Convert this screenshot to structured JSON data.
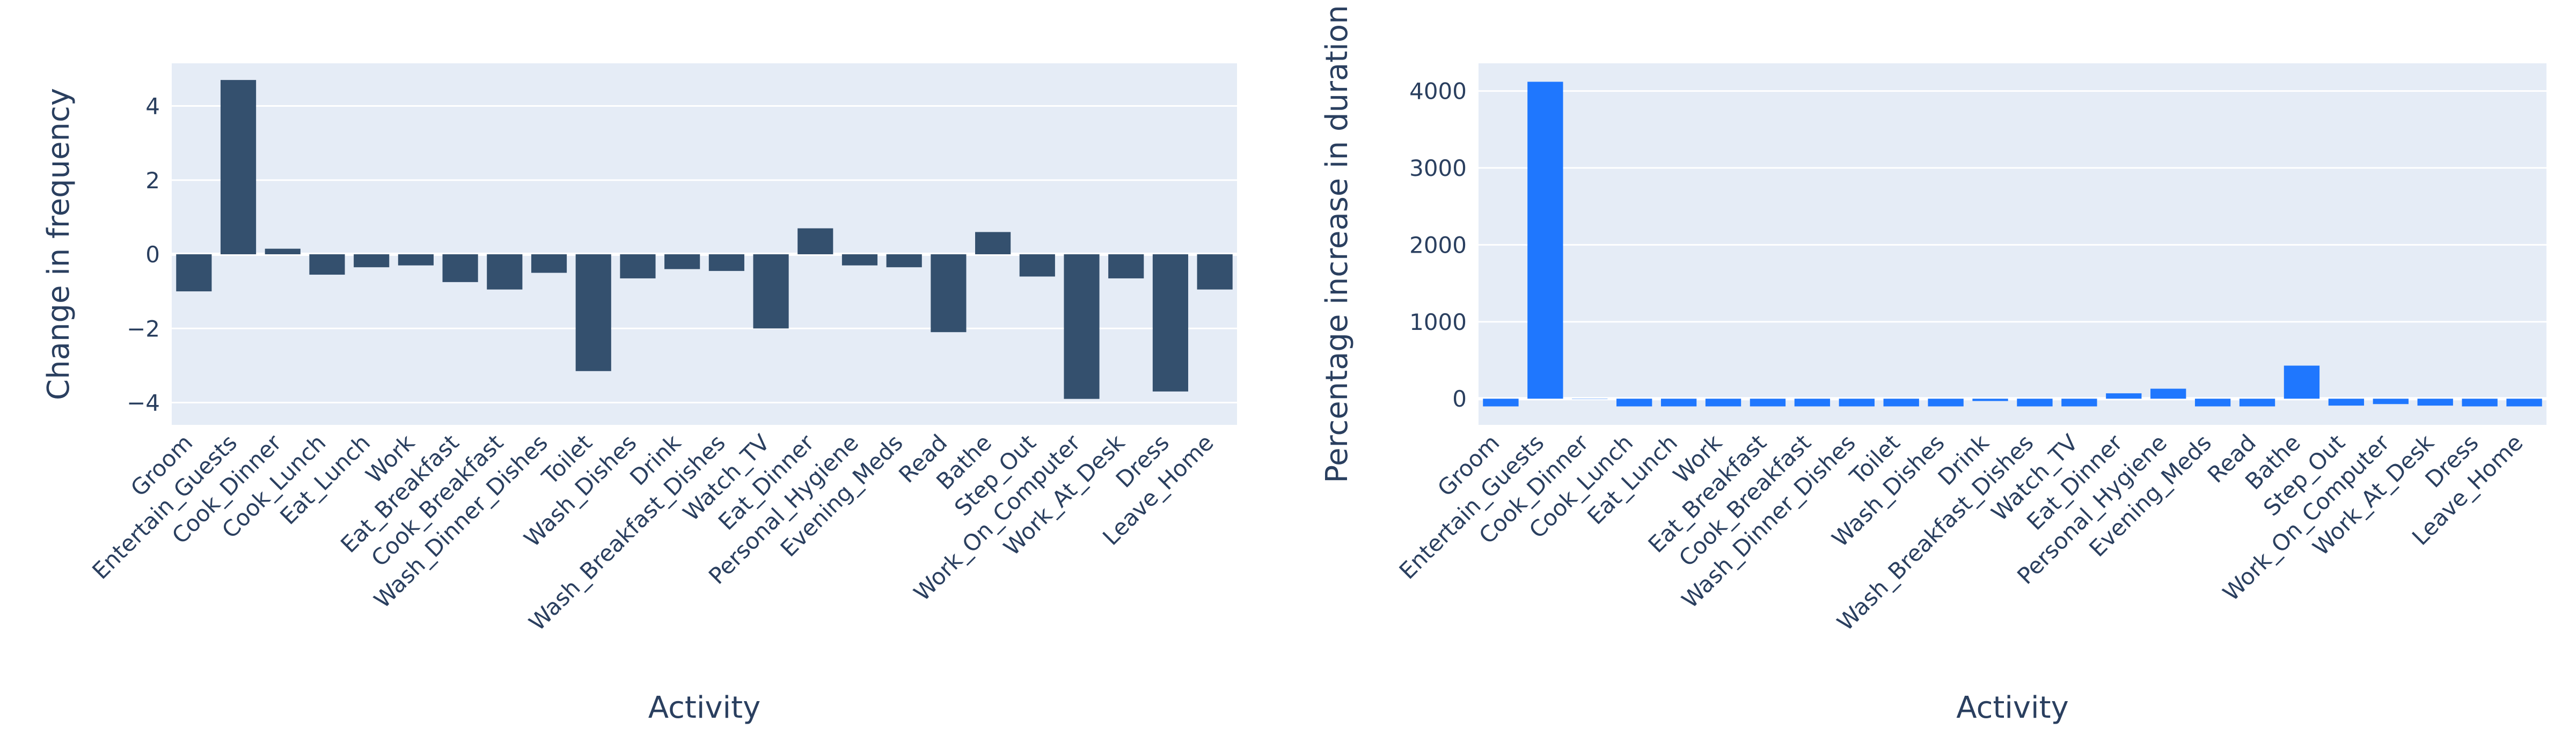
{
  "chart_data": [
    {
      "type": "bar",
      "xlabel": "Activity",
      "ylabel": "Change in frequency",
      "categories": [
        "Groom",
        "Entertain_Guests",
        "Cook_Dinner",
        "Cook_Lunch",
        "Eat_Lunch",
        "Work",
        "Eat_Breakfast",
        "Cook_Breakfast",
        "Wash_Dinner_Dishes",
        "Toilet",
        "Wash_Dishes",
        "Drink",
        "Wash_Breakfast_Dishes",
        "Watch_TV",
        "Eat_Dinner",
        "Personal_Hygiene",
        "Evening_Meds",
        "Read",
        "Bathe",
        "Step_Out",
        "Work_On_Computer",
        "Work_At_Desk",
        "Dress",
        "Leave_Home"
      ],
      "values": [
        -1.0,
        4.7,
        0.15,
        -0.55,
        -0.35,
        -0.3,
        -0.75,
        -0.95,
        -0.5,
        -3.15,
        -0.65,
        -0.4,
        -0.45,
        -2.0,
        0.7,
        -0.3,
        -0.35,
        -2.1,
        0.6,
        -0.6,
        -3.9,
        -0.65,
        -3.7,
        -0.95
      ],
      "ylim": [
        -4.6,
        5.15
      ],
      "yticks": [
        -4,
        -2,
        0,
        2,
        4
      ],
      "ytick_labels": [
        "−4",
        "−2",
        "0",
        "2",
        "4"
      ],
      "bar_color": "#34506e",
      "grid": true
    },
    {
      "type": "bar",
      "xlabel": "Activity",
      "ylabel": "Percentage increase in duration",
      "categories": [
        "Groom",
        "Entertain_Guests",
        "Cook_Dinner",
        "Cook_Lunch",
        "Eat_Lunch",
        "Work",
        "Eat_Breakfast",
        "Cook_Breakfast",
        "Wash_Dinner_Dishes",
        "Toilet",
        "Wash_Dishes",
        "Drink",
        "Wash_Breakfast_Dishes",
        "Watch_TV",
        "Eat_Dinner",
        "Personal_Hygiene",
        "Evening_Meds",
        "Read",
        "Bathe",
        "Step_Out",
        "Work_On_Computer",
        "Work_At_Desk",
        "Dress",
        "Leave_Home"
      ],
      "values": [
        -100,
        4120,
        0,
        -100,
        -100,
        -100,
        -100,
        -100,
        -100,
        -100,
        -100,
        -30,
        -100,
        -100,
        70,
        130,
        -100,
        -100,
        430,
        -90,
        -70,
        -90,
        -100,
        -100
      ],
      "ylim": [
        -340,
        4360
      ],
      "yticks": [
        0,
        1000,
        2000,
        3000,
        4000
      ],
      "ytick_labels": [
        "0",
        "1000",
        "2000",
        "3000",
        "4000"
      ],
      "bar_color": "#1f77fe",
      "grid": true
    }
  ]
}
